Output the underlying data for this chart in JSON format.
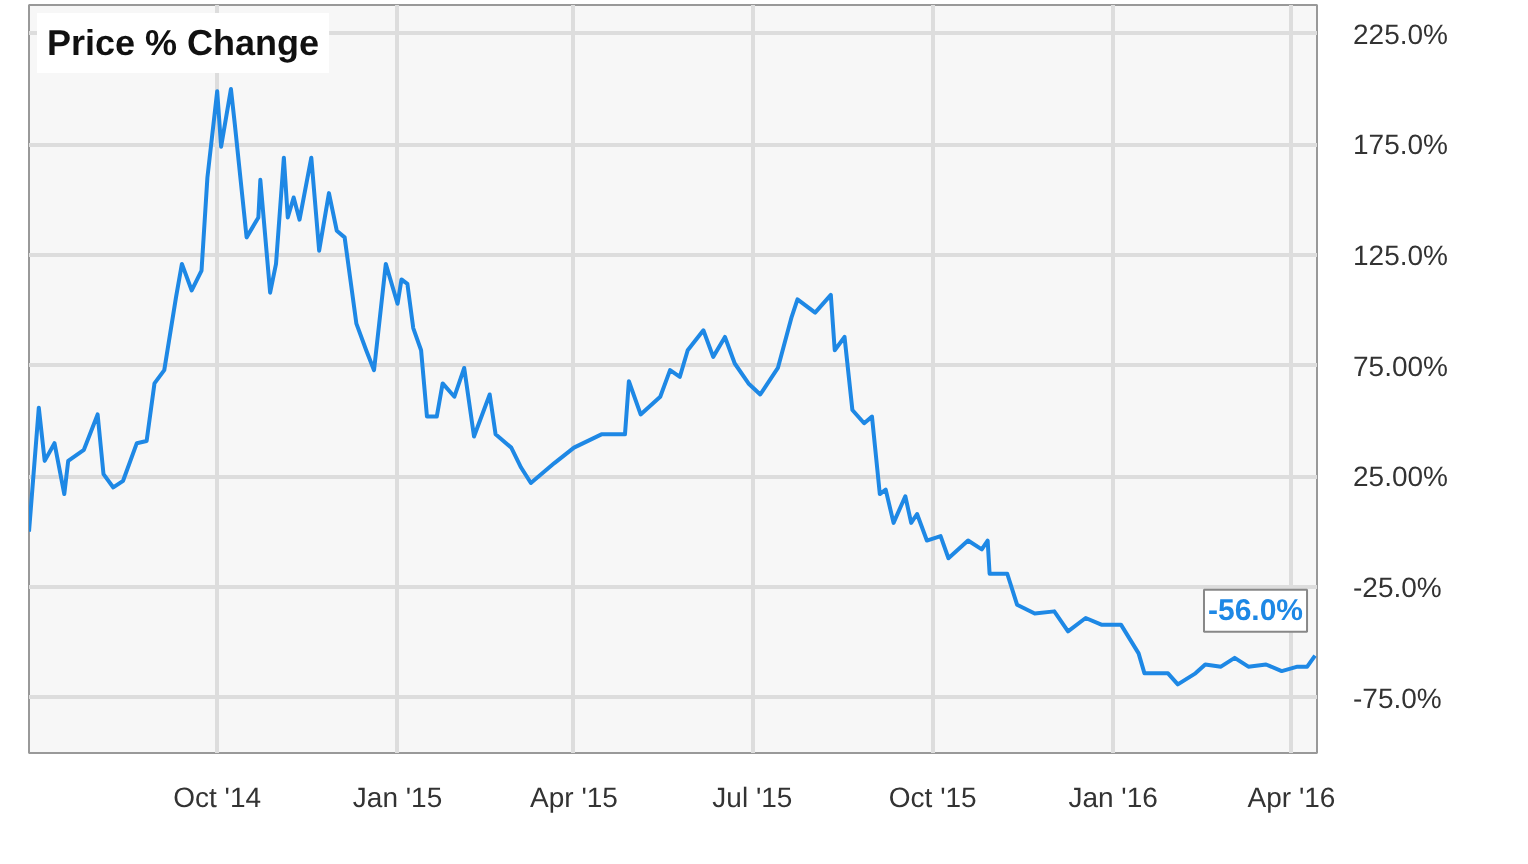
{
  "chart_data": {
    "type": "line",
    "title": "Price % Change",
    "x": [
      "2014-06-27",
      "2014-07-02",
      "2014-07-05",
      "2014-07-10",
      "2014-07-15",
      "2014-07-17",
      "2014-07-25",
      "2014-08-01",
      "2014-08-04",
      "2014-08-09",
      "2014-08-14",
      "2014-08-21",
      "2014-08-26",
      "2014-08-30",
      "2014-09-04",
      "2014-09-10",
      "2014-09-13",
      "2014-09-18",
      "2014-09-23",
      "2014-09-26",
      "2014-10-01",
      "2014-10-03",
      "2014-10-08",
      "2014-10-10",
      "2014-10-16",
      "2014-10-22",
      "2014-10-23",
      "2014-10-28",
      "2014-10-31",
      "2014-11-04",
      "2014-11-06",
      "2014-11-09",
      "2014-11-12",
      "2014-11-18",
      "2014-11-22",
      "2014-11-27",
      "2014-12-01",
      "2014-12-05",
      "2014-12-11",
      "2014-12-16",
      "2014-12-20",
      "2014-12-26",
      "2015-01-01",
      "2015-01-03",
      "2015-01-06",
      "2015-01-09",
      "2015-01-13",
      "2015-01-16",
      "2015-01-21",
      "2015-01-24",
      "2015-01-30",
      "2015-02-04",
      "2015-02-09",
      "2015-02-17",
      "2015-02-20",
      "2015-02-28",
      "2015-03-05",
      "2015-03-10",
      "2015-03-22",
      "2015-04-01",
      "2015-04-15",
      "2015-04-27",
      "2015-04-29",
      "2015-05-05",
      "2015-05-15",
      "2015-05-20",
      "2015-05-25",
      "2015-05-29",
      "2015-06-06",
      "2015-06-11",
      "2015-06-17",
      "2015-06-22",
      "2015-06-29",
      "2015-07-05",
      "2015-07-14",
      "2015-07-21",
      "2015-07-24",
      "2015-08-02",
      "2015-08-10",
      "2015-08-12",
      "2015-08-17",
      "2015-08-21",
      "2015-08-27",
      "2015-08-31",
      "2015-09-04",
      "2015-09-07",
      "2015-09-11",
      "2015-09-17",
      "2015-09-20",
      "2015-09-23",
      "2015-09-28",
      "2015-10-05",
      "2015-10-09",
      "2015-10-19",
      "2015-10-26",
      "2015-10-29",
      "2015-10-30",
      "2015-11-08",
      "2015-11-13",
      "2015-11-22",
      "2015-12-02",
      "2015-12-09",
      "2015-12-18",
      "2015-12-26",
      "2016-01-05",
      "2016-01-14",
      "2016-01-17",
      "2016-01-29",
      "2016-02-03",
      "2016-02-12",
      "2016-02-17",
      "2016-02-25",
      "2016-03-03",
      "2016-03-10",
      "2016-03-19",
      "2016-03-27",
      "2016-04-04",
      "2016-04-09",
      "2016-04-13"
    ],
    "series": [
      {
        "color": "#1e88e5",
        "values": [
          0,
          56,
          32,
          40,
          17,
          32,
          37,
          53,
          26,
          20,
          23,
          40,
          41,
          67,
          73,
          106,
          121,
          109,
          118,
          160,
          199,
          174,
          200,
          184,
          133,
          142,
          159,
          108,
          121,
          169,
          142,
          151,
          141,
          169,
          127,
          153,
          136,
          133,
          94,
          82,
          73,
          121,
          103,
          114,
          112,
          92,
          82,
          52,
          52,
          67,
          61,
          74,
          43,
          62,
          44,
          38,
          29,
          22,
          31,
          38,
          44,
          44,
          68,
          53,
          61,
          73,
          70,
          82,
          91,
          79,
          88,
          76,
          67,
          62,
          74,
          97,
          105,
          99,
          107,
          82,
          88,
          55,
          49,
          52,
          17,
          19,
          4,
          16,
          4,
          8,
          -4,
          -2,
          -12,
          -4,
          -8,
          -4,
          -19,
          -19,
          -33,
          -37,
          -36,
          -45,
          -39,
          -42,
          -42,
          -55,
          -64,
          -64,
          -69,
          -64,
          -60,
          -61,
          -57,
          -61,
          -60,
          -63,
          -61,
          -61,
          -56
        ]
      }
    ],
    "xlim": [
      "2014-06-27",
      "2016-04-14"
    ],
    "xticks": [
      {
        "value": "2014-10-01",
        "label": "Oct '14"
      },
      {
        "value": "2015-01-01",
        "label": "Jan '15"
      },
      {
        "value": "2015-04-01",
        "label": "Apr '15"
      },
      {
        "value": "2015-07-01",
        "label": "Jul '15"
      },
      {
        "value": "2015-10-01",
        "label": "Oct '15"
      },
      {
        "value": "2016-01-01",
        "label": "Jan '16"
      },
      {
        "value": "2016-04-01",
        "label": "Apr '16"
      }
    ],
    "ylim": [
      -100,
      238
    ],
    "yticks": [
      {
        "value": 225,
        "label": "225.0%"
      },
      {
        "value": 175,
        "label": "175.0%"
      },
      {
        "value": 125,
        "label": "125.0%"
      },
      {
        "value": 75,
        "label": "75.00%"
      },
      {
        "value": 25,
        "label": "25.00%"
      },
      {
        "value": -25,
        "label": "-25.0%"
      },
      {
        "value": -75,
        "label": "-75.0%"
      }
    ],
    "annotations": [
      {
        "text": "-56.0%",
        "x": "2016-04-13",
        "y": -56
      }
    ],
    "grid": true,
    "marker": "none",
    "line_style": "solid"
  }
}
